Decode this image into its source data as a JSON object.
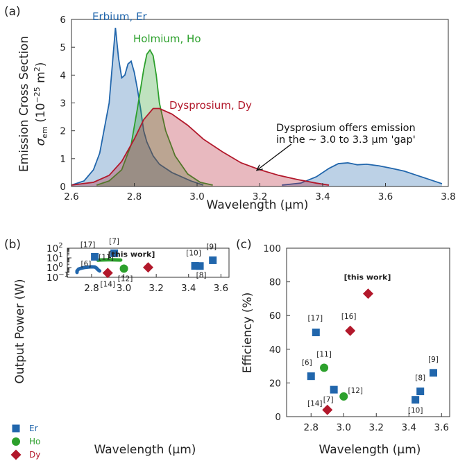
{
  "colors": {
    "Er": "#2166ac",
    "Ho": "#2ca02c",
    "Dy": "#b2182b",
    "annotation": "#111111"
  },
  "chart_data": [
    {
      "panel": "(a)",
      "type": "area",
      "xlabel": "Wavelength (µm)",
      "ylabel_line1": "Emission Cross Section",
      "ylabel_line2_prefix": "σ",
      "ylabel_line2_sub": "em",
      "ylabel_line2_mid": " (10",
      "ylabel_line2_sup": "−25",
      "ylabel_line2_unit": " m",
      "ylabel_line2_sup2": "2",
      "ylabel_line2_end": ")",
      "xlim": [
        2.6,
        3.8
      ],
      "ylim": [
        0,
        6
      ],
      "xticks": [
        2.6,
        2.8,
        3.0,
        3.2,
        3.4,
        3.6,
        3.8
      ],
      "xtick_labels": [
        "2.6",
        "2.8",
        "3.0",
        "3.2",
        "3.4",
        "3.6",
        "3.8"
      ],
      "yticks": [
        0,
        1,
        2,
        3,
        4,
        5,
        6
      ],
      "ytick_labels": [
        "0",
        "1",
        "2",
        "3",
        "4",
        "5",
        "6"
      ],
      "series": [
        {
          "name": "Erbium, Er",
          "color_key": "Er",
          "x": [
            2.6,
            2.64,
            2.67,
            2.69,
            2.7,
            2.72,
            2.74,
            2.75,
            2.76,
            2.77,
            2.78,
            2.79,
            2.8,
            2.81,
            2.82,
            2.83,
            2.84,
            2.86,
            2.88,
            2.92,
            2.95,
            2.98,
            3.02
          ],
          "y": [
            0.05,
            0.2,
            0.6,
            1.2,
            1.8,
            3.0,
            5.7,
            4.6,
            3.9,
            4.0,
            4.4,
            4.5,
            4.1,
            3.5,
            2.8,
            2.0,
            1.6,
            1.1,
            0.8,
            0.5,
            0.35,
            0.2,
            0.05
          ]
        },
        {
          "name": "",
          "color_key": "Er",
          "x": [
            3.27,
            3.33,
            3.38,
            3.42,
            3.45,
            3.48,
            3.51,
            3.54,
            3.58,
            3.62,
            3.66,
            3.7,
            3.74,
            3.78
          ],
          "y": [
            0.05,
            0.12,
            0.35,
            0.65,
            0.82,
            0.85,
            0.78,
            0.8,
            0.74,
            0.65,
            0.55,
            0.4,
            0.25,
            0.1
          ]
        },
        {
          "name": "Holmium, Ho",
          "color_key": "Ho",
          "x": [
            2.68,
            2.72,
            2.76,
            2.79,
            2.81,
            2.83,
            2.84,
            2.85,
            2.86,
            2.87,
            2.88,
            2.9,
            2.93,
            2.97,
            3.01,
            3.05
          ],
          "y": [
            0.05,
            0.2,
            0.6,
            1.5,
            2.8,
            4.2,
            4.75,
            4.9,
            4.7,
            4.0,
            3.0,
            2.0,
            1.1,
            0.45,
            0.15,
            0.05
          ]
        },
        {
          "name": "Dysprosium, Dy",
          "color_key": "Dy",
          "x": [
            2.6,
            2.67,
            2.72,
            2.76,
            2.8,
            2.83,
            2.86,
            2.88,
            2.92,
            2.97,
            3.02,
            3.08,
            3.14,
            3.2,
            3.26,
            3.32,
            3.38,
            3.42
          ],
          "y": [
            0.05,
            0.15,
            0.4,
            0.9,
            1.7,
            2.4,
            2.8,
            2.8,
            2.6,
            2.2,
            1.7,
            1.25,
            0.85,
            0.6,
            0.4,
            0.25,
            0.12,
            0.05
          ]
        }
      ],
      "annotation": {
        "line1": "Dysprosium offers emission",
        "line2": "in the ∼ 3.0 to 3.3 µm 'gap'",
        "arrow_to": [
          3.19,
          0.58
        ],
        "arrow_from": [
          3.3,
          1.52
        ]
      }
    },
    {
      "panel": "(b)",
      "type": "scatter",
      "xlabel": "Wavelength (µm)",
      "ylabel": "Output Power (W)",
      "xlim": [
        2.65,
        3.65
      ],
      "ylog": true,
      "ylim": [
        0.1,
        100
      ],
      "xticks": [
        2.8,
        3.0,
        3.2,
        3.4,
        3.6
      ],
      "xtick_labels": [
        "2.8",
        "3.0",
        "3.2",
        "3.4",
        "3.6"
      ],
      "yticks": [
        0.1,
        1,
        10,
        100
      ],
      "ytick_base": "10",
      "ytick_exps": [
        "−1",
        "0",
        "1",
        "2"
      ],
      "points": [
        {
          "ref": "[17]",
          "x": 2.82,
          "y": 13,
          "series": "Er"
        },
        {
          "ref": "[7]",
          "x": 2.94,
          "y": 30,
          "series": "Er"
        },
        {
          "ref": "[9]",
          "x": 3.55,
          "y": 5.7,
          "series": "Er"
        },
        {
          "ref": "[10]",
          "x": 3.44,
          "y": 1.5,
          "series": "Er"
        },
        {
          "ref": "[8]",
          "x": 3.47,
          "y": 1.45,
          "series": "Er"
        },
        {
          "ref": "[12]",
          "x": 3.0,
          "y": 0.78,
          "series": "Ho"
        },
        {
          "ref": "[this work]",
          "x": 3.15,
          "y": 1.05,
          "series": "Dy"
        },
        {
          "ref": "[14]",
          "x": 2.9,
          "y": 0.28,
          "series": "Dy"
        }
      ],
      "curves": [
        {
          "ref": "[6]",
          "series": "Er",
          "x": [
            2.71,
            2.71,
            2.72,
            2.74,
            2.76,
            2.78,
            2.8,
            2.82,
            2.83,
            2.84,
            2.85
          ],
          "y": [
            0.32,
            0.45,
            0.7,
            0.9,
            1.05,
            1.12,
            1.2,
            1.15,
            0.9,
            0.6,
            0.45
          ]
        },
        {
          "ref": "[11]",
          "series": "Ho",
          "x": [
            2.84,
            2.86,
            2.88,
            2.9,
            2.92,
            2.94,
            2.96,
            2.98
          ],
          "y": [
            5.8,
            6.1,
            6.2,
            6.3,
            6.3,
            6.25,
            6.15,
            6.0
          ]
        }
      ]
    },
    {
      "panel": "(c)",
      "type": "scatter",
      "xlabel": "Wavelength (µm)",
      "ylabel": "Efficiency (%)",
      "xlim": [
        2.65,
        3.65
      ],
      "ylim": [
        0,
        100
      ],
      "xticks": [
        2.8,
        3.0,
        3.2,
        3.4,
        3.6
      ],
      "xtick_labels": [
        "2.8",
        "3.0",
        "3.2",
        "3.4",
        "3.6"
      ],
      "yticks": [
        0,
        20,
        40,
        60,
        80,
        100
      ],
      "ytick_labels": [
        "0",
        "20",
        "40",
        "60",
        "80",
        "100"
      ],
      "points": [
        {
          "ref": "[6]",
          "x": 2.8,
          "y": 24,
          "series": "Er"
        },
        {
          "ref": "[17]",
          "x": 2.83,
          "y": 50,
          "series": "Er"
        },
        {
          "ref": "[7]",
          "x": 2.94,
          "y": 16,
          "series": "Er"
        },
        {
          "ref": "[9]",
          "x": 3.55,
          "y": 26,
          "series": "Er"
        },
        {
          "ref": "[8]",
          "x": 3.47,
          "y": 15,
          "series": "Er"
        },
        {
          "ref": "[10]",
          "x": 3.44,
          "y": 10,
          "series": "Er"
        },
        {
          "ref": "[11]",
          "x": 2.88,
          "y": 29,
          "series": "Ho"
        },
        {
          "ref": "[12]",
          "x": 3.0,
          "y": 12,
          "series": "Ho"
        },
        {
          "ref": "[16]",
          "x": 3.04,
          "y": 51,
          "series": "Dy"
        },
        {
          "ref": "[this work]",
          "x": 3.15,
          "y": 73,
          "series": "Dy"
        },
        {
          "ref": "[14]",
          "x": 2.9,
          "y": 4,
          "series": "Dy"
        }
      ]
    }
  ],
  "legend": [
    {
      "label": "Er",
      "series": "Er",
      "marker": "square"
    },
    {
      "label": "Ho",
      "series": "Ho",
      "marker": "circle"
    },
    {
      "label": "Dy",
      "series": "Dy",
      "marker": "diamond"
    }
  ]
}
